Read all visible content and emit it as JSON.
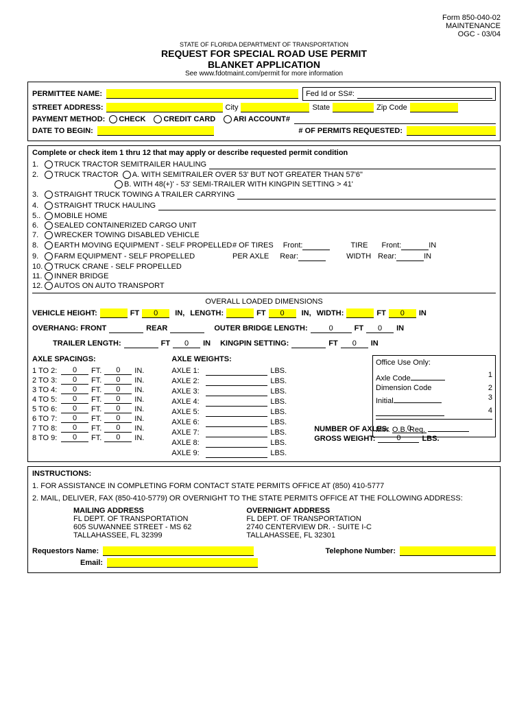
{
  "header": {
    "formNum": "Form 850-040-02",
    "maint": "MAINTENANCE",
    "ogc": "OGC - 03/04",
    "dept": "STATE OF FLORIDA DEPARTMENT OF TRANSPORTATION",
    "title1": "REQUEST FOR SPECIAL ROAD USE PERMIT",
    "title2": "BLANKET APPLICATION",
    "sub": "See www.fdotmaint.com/permit for more information"
  },
  "f": {
    "permittee": "PERMITTEE NAME:",
    "fedid": "Fed Id or SS#:",
    "street": "STREET ADDRESS:",
    "city": "City",
    "state": "State",
    "zip": "Zip Code",
    "payment": "PAYMENT METHOD:",
    "check": "CHECK",
    "credit": "CREDIT CARD",
    "ari": "ARI ACCOUNT#",
    "begin": "DATE TO BEGIN:",
    "permits": "# OF PERMITS REQUESTED:"
  },
  "s2": {
    "intro": "Complete or check item 1 thru 12 that may apply or describe requested permit condition",
    "i1": "TRUCK TRACTOR SEMITRAILER HAULING",
    "i2": "TRUCK TRACTOR",
    "i2a": "A.  WITH SEMITRAILER OVER 53' BUT NOT GREATER THAN 57'6\"",
    "i2b": "B.  WITH 48(+)' - 53' SEMI-TRAILER WITH KINGPIN SETTING > 41'",
    "i3": "STRAIGHT TRUCK TOWING A TRAILER CARRYING",
    "i4": "STRAIGHT TRUCK HAULING",
    "i5": "MOBILE HOME",
    "i6": "SEALED CONTAINERIZED CARGO UNIT",
    "i7": "WRECKER TOWING DISABLED VEHICLE",
    "i8": "EARTH MOVING EQUIPMENT - SELF PROPELLED",
    "i9": "FARM EQUIPMENT - SELF PROPELLED",
    "i10": "TRUCK CRANE - SELF PROPELLED",
    "i11": "INNER BRIDGE",
    "i12": "AUTOS ON AUTO TRANSPORT",
    "tires": "# OF TIRES",
    "peraxle": "PER AXLE",
    "front": "Front:",
    "rear": "Rear:",
    "tire": "TIRE",
    "width": "WIDTH",
    "in": "IN"
  },
  "dims": {
    "title": "OVERALL LOADED DIMENSIONS",
    "vheight": "VEHICLE HEIGHT:",
    "length": "LENGTH:",
    "fwidth": "WIDTH:",
    "ft": "FT",
    "in": "IN,",
    "in2": "IN",
    "overhang": "OVERHANG:  FRONT",
    "rear": "REAR",
    "obl": "OUTER BRIDGE LENGTH:",
    "trailer": "TRAILER LENGTH:",
    "kingpin": "KINGPIN SETTING:",
    "zero": "0"
  },
  "axle": {
    "sp": "AXLE SPACINGS:",
    "wt": "AXLE WEIGHTS:",
    "ft": "FT.",
    "in": "IN.",
    "lbs": "LBS.",
    "r": [
      "1 TO 2:",
      "2 TO 3:",
      "3 TO 4:",
      "4 TO 5:",
      "5 TO 6:",
      "6 TO 7:",
      "7 TO 8:",
      "8 TO 9:"
    ],
    "a": [
      "AXLE 1:",
      "AXLE 2:",
      "AXLE 3:",
      "AXLE 4:",
      "AXLE 5:",
      "AXLE 6:",
      "AXLE 7:",
      "AXLE 8:",
      "AXLE 9:"
    ],
    "numaxles": "NUMBER OF AXLES:",
    "gross": "GROSS WEIGHT:",
    "zero": "0"
  },
  "office": {
    "title": "Office Use Only:",
    "code": "Axle Code",
    "dim": "Dimension Code",
    "init": "Initial",
    "min": "Min. O.B. Req.",
    "n1": "1",
    "n2": "2",
    "n3": "3",
    "n4": "4"
  },
  "inst": {
    "title": "INSTRUCTIONS:",
    "l1": "1.  FOR ASSISTANCE IN COMPLETING FORM CONTACT STATE PERMITS OFFICE AT (850) 410-5777",
    "l2": "2.  MAIL, DELIVER, FAX (850-410-5779) OR OVERNIGHT TO THE STATE PERMITS OFFICE AT THE FOLLOWING ADDRESS:",
    "mt": "MAILING ADDRESS",
    "m1": "FL DEPT. OF TRANSPORTATION",
    "m2": "605 SUWANNEE STREET - MS 62",
    "m3": "TALLAHASSEE, FL 32399",
    "ot": "OVERNIGHT ADDRESS",
    "o1": "FL DEPT. OF TRANSPORTATION",
    "o2": "2740 CENTERVIEW DR. - SUITE I-C",
    "o3": "TALLAHASSEE, FL 32301",
    "req": "Requestors Name:",
    "tel": "Telephone Number:",
    "email": "Email:"
  }
}
